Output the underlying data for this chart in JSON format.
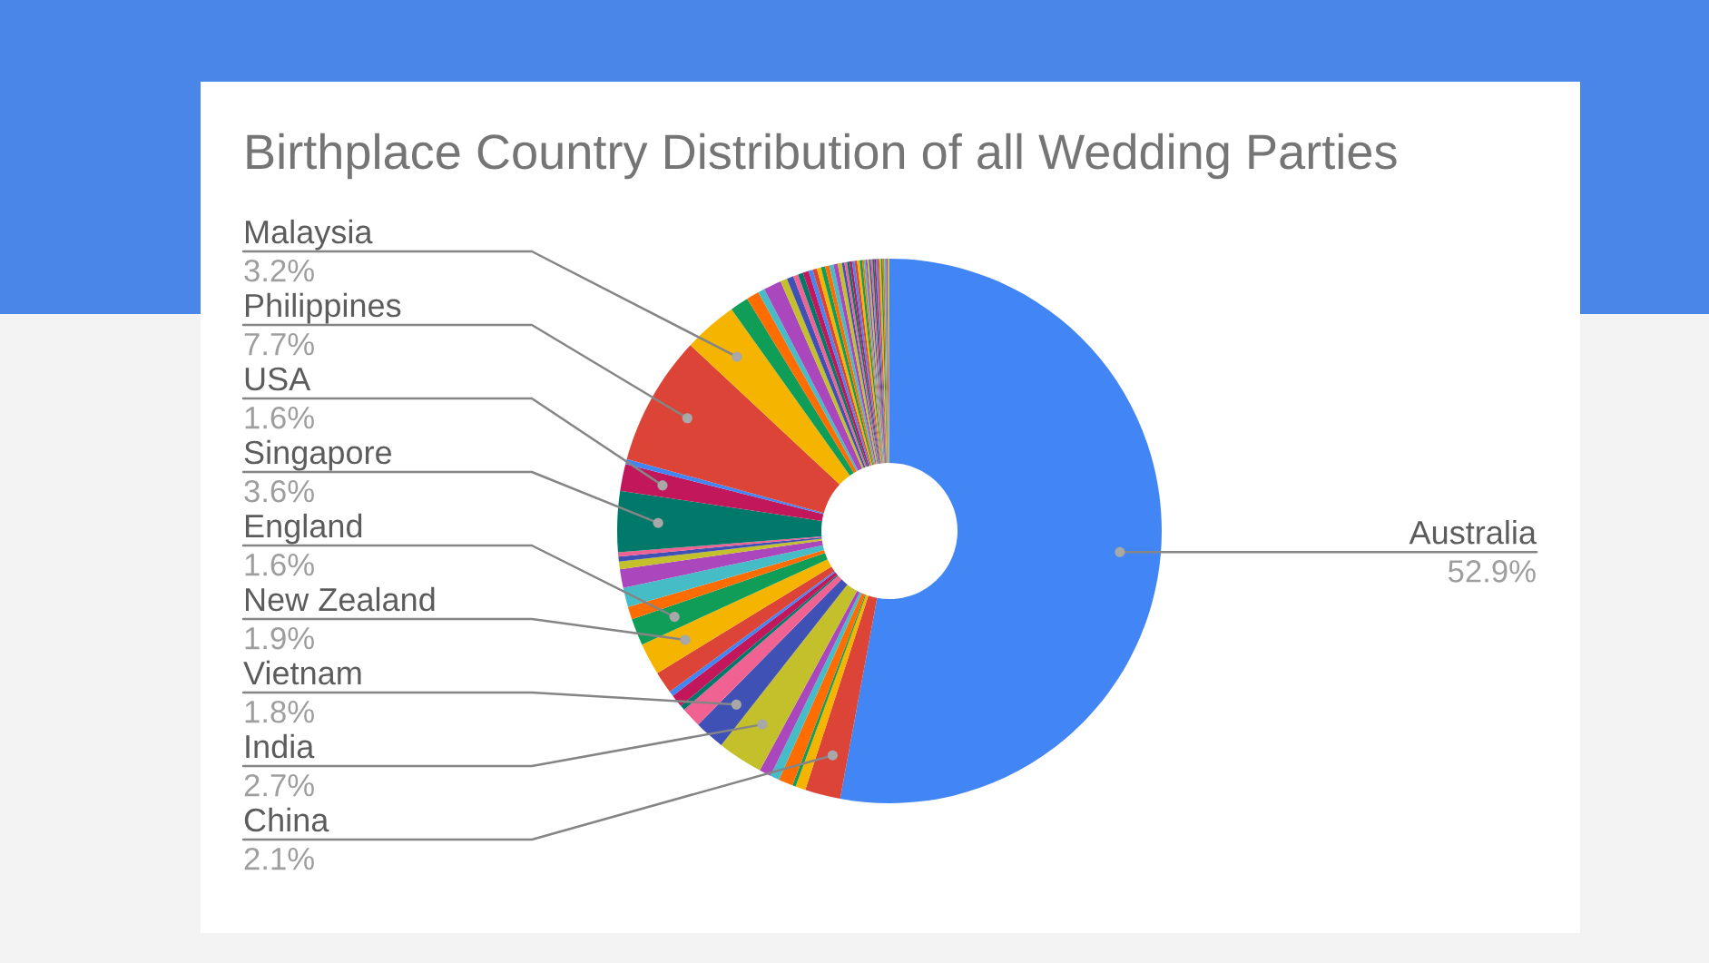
{
  "chart_data": {
    "type": "donut",
    "title": "Birthplace Country Distribution of all Wedding Parties",
    "categories": [
      "Australia",
      "China",
      null,
      null,
      null,
      null,
      null,
      "India",
      "Vietnam",
      null,
      null,
      null,
      null,
      null,
      "New Zealand",
      "England",
      null,
      null,
      null,
      null,
      null,
      null,
      "Singapore",
      "USA",
      null,
      "Philippines",
      "Malaysia",
      null,
      null,
      null,
      null,
      null,
      null,
      null,
      null,
      null,
      null,
      null,
      null,
      null,
      null,
      null,
      null,
      null,
      null,
      null,
      null,
      null,
      null,
      null,
      null,
      null,
      null,
      null,
      null,
      null,
      null,
      null,
      null,
      null,
      null,
      null,
      null,
      null,
      null,
      null,
      null,
      null
    ],
    "values": [
      52.9,
      2.1,
      0.6,
      0.2,
      0.85,
      0.55,
      0.7,
      2.7,
      1.8,
      1.2,
      0.3,
      0.75,
      0.3,
      1.3,
      1.9,
      1.6,
      0.75,
      1.15,
      1.1,
      0.45,
      0.3,
      0.25,
      3.6,
      1.6,
      0.3,
      7.7,
      3.2,
      1.1,
      0.75,
      0.4,
      1.05,
      0.4,
      0.4,
      0.3,
      0.3,
      0.35,
      0.25,
      0.25,
      0.25,
      0.25,
      0.25,
      0.25,
      0.25,
      0.25,
      0.15,
      0.15,
      0.15,
      0.15,
      0.15,
      0.15,
      0.15,
      0.15,
      0.1,
      0.1,
      0.1,
      0.1,
      0.1,
      0.1,
      0.1,
      0.1,
      0.1,
      0.1,
      0.1,
      0.1,
      0.1,
      0.1,
      0.1,
      0.1
    ],
    "value_labels": [
      "52.9%",
      "2.1%",
      null,
      null,
      null,
      null,
      null,
      "2.7%",
      "1.8%",
      null,
      null,
      null,
      null,
      null,
      "1.9%",
      "1.6%",
      null,
      null,
      null,
      null,
      null,
      null,
      "3.6%",
      "1.6%",
      null,
      "7.7%",
      "3.2%",
      null,
      null,
      null,
      null,
      null,
      null,
      null,
      null,
      null,
      null,
      null,
      null,
      null,
      null,
      null,
      null,
      null,
      null,
      null,
      null,
      null,
      null,
      null,
      null,
      null,
      null,
      null,
      null,
      null,
      null,
      null,
      null,
      null,
      null,
      null,
      null,
      null,
      null,
      null,
      null,
      null
    ],
    "colors": [
      "#4285f4",
      "#db4437",
      "#f4b400",
      "#0f9d58",
      "#ff6d01",
      "#46bdc6",
      "#ab47bc",
      "#c3c02b",
      "#3f51b5",
      "#f06292",
      "#00796b",
      "#c2185b",
      "#4285f4",
      "#db4437",
      "#f4b400",
      "#0f9d58",
      "#ff6d01",
      "#46bdc6",
      "#ab47bc",
      "#c3c02b",
      "#3f51b5",
      "#f06292",
      "#00796b",
      "#c2185b",
      "#4285f4",
      "#db4437",
      "#f4b400",
      "#0f9d58",
      "#ff6d01",
      "#46bdc6",
      "#ab47bc",
      "#c3c02b",
      "#3f51b5",
      "#f06292",
      "#00796b",
      "#c2185b",
      "#4285f4",
      "#db4437",
      "#f4b400",
      "#0f9d58",
      "#ff6d01",
      "#46bdc6",
      "#ab47bc",
      "#c3c02b",
      "#3f51b5",
      "#f06292",
      "#00796b",
      "#c2185b",
      "#4285f4",
      "#db4437",
      "#f4b400",
      "#0f9d58",
      "#ff6d01",
      "#46bdc6",
      "#ab47bc",
      "#c3c02b",
      "#3f51b5",
      "#f06292",
      "#00796b",
      "#c2185b",
      "#4285f4",
      "#db4437",
      "#f4b400",
      "#0f9d58",
      "#ff6d01",
      "#46bdc6",
      "#ab47bc",
      "#c3c02b"
    ]
  }
}
